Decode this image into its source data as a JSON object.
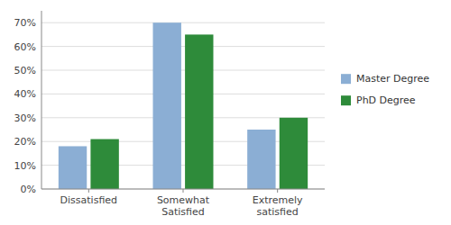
{
  "chart_data": {
    "type": "bar",
    "categories": [
      "Dissatisfied",
      "Somewhat\nSatisfied",
      "Extremely\nsatisfied"
    ],
    "series": [
      {
        "name": "Master Degree",
        "color": "#8baed4",
        "values": [
          0.18,
          0.7,
          0.25
        ]
      },
      {
        "name": "PhD Degree",
        "color": "#2e8b3a",
        "values": [
          0.21,
          0.65,
          0.3
        ]
      }
    ],
    "ylim": [
      0,
      0.75
    ],
    "yticks": [
      {
        "value": 0.0,
        "label": "0%"
      },
      {
        "value": 0.1,
        "label": "10%"
      },
      {
        "value": 0.2,
        "label": "20%"
      },
      {
        "value": 0.3,
        "label": "30%"
      },
      {
        "value": 0.4,
        "label": "40%"
      },
      {
        "value": 0.5,
        "label": "50%"
      },
      {
        "value": 0.6,
        "label": "60%"
      },
      {
        "value": 0.7,
        "label": "70%"
      }
    ],
    "grid": true,
    "legend": "right"
  }
}
